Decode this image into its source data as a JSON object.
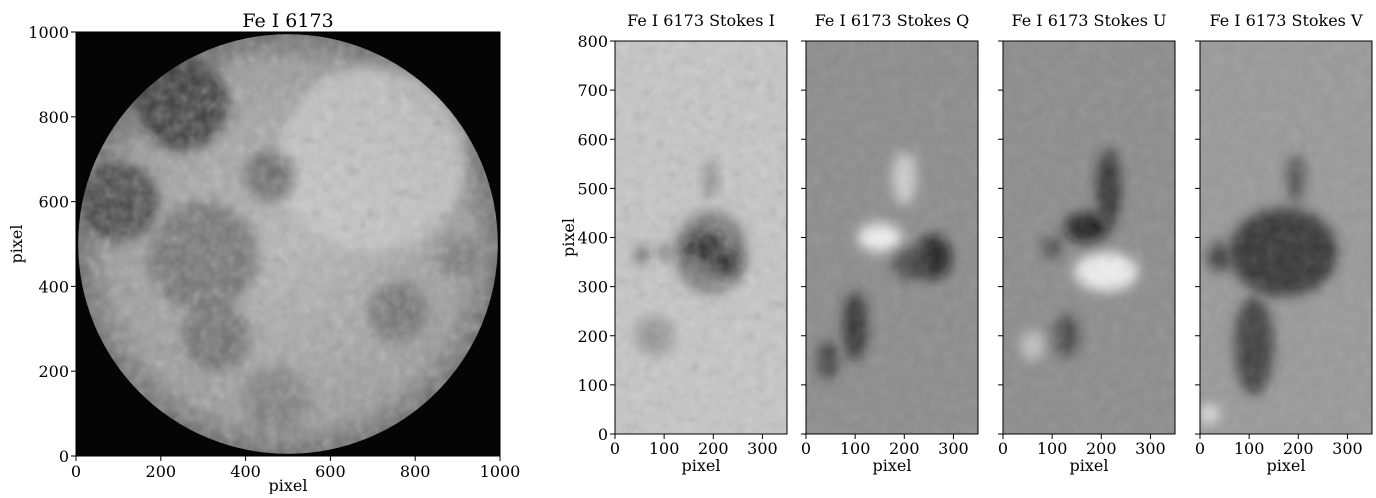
{
  "chart_data": [
    {
      "type": "image",
      "title": "Fe I 6173",
      "xlabel": "pixel",
      "ylabel": "pixel",
      "xlim": [
        0,
        1000
      ],
      "ylim": [
        0,
        1000
      ],
      "xticks": [
        0,
        200,
        400,
        600,
        800,
        1000
      ],
      "yticks": [
        0,
        200,
        400,
        600,
        800,
        1000
      ],
      "colormap": "gray",
      "content": "full-disk solar image",
      "disk": {
        "center": [
          500,
          500
        ],
        "radius": 495
      },
      "dark_regions": [
        {
          "x": 250,
          "y": 830,
          "r": 110,
          "level": 0.16
        },
        {
          "x": 100,
          "y": 600,
          "r": 95,
          "level": 0.22
        },
        {
          "x": 455,
          "y": 660,
          "r": 60,
          "level": 0.38
        },
        {
          "x": 300,
          "y": 470,
          "r": 130,
          "level": 0.42
        },
        {
          "x": 330,
          "y": 280,
          "r": 80,
          "level": 0.4
        },
        {
          "x": 760,
          "y": 340,
          "r": 70,
          "level": 0.42
        },
        {
          "x": 900,
          "y": 470,
          "r": 45,
          "level": 0.45
        },
        {
          "x": 470,
          "y": 130,
          "r": 80,
          "level": 0.48
        }
      ],
      "bright_regions": [
        {
          "x": 700,
          "y": 700,
          "r": 220,
          "level": 0.82
        }
      ]
    },
    {
      "type": "image",
      "title": "Fe I 6173 Stokes I",
      "xlabel": "pixel",
      "ylabel": "pixel",
      "xlim": [
        0,
        350
      ],
      "ylim": [
        0,
        800
      ],
      "xticks": [
        0,
        100,
        200,
        300
      ],
      "yticks": [
        0,
        100,
        200,
        300,
        400,
        500,
        600,
        700,
        800
      ],
      "colormap": "gray",
      "background": 0.78,
      "features": [
        {
          "x": 195,
          "y": 370,
          "rx": 75,
          "ry": 85,
          "level": 0.4
        },
        {
          "x": 180,
          "y": 380,
          "rx": 40,
          "ry": 30,
          "level": 0.1
        },
        {
          "x": 225,
          "y": 350,
          "rx": 30,
          "ry": 25,
          "level": 0.12
        },
        {
          "x": 55,
          "y": 365,
          "rx": 14,
          "ry": 18,
          "level": 0.25
        },
        {
          "x": 100,
          "y": 370,
          "rx": 12,
          "ry": 16,
          "level": 0.28
        },
        {
          "x": 195,
          "y": 520,
          "rx": 15,
          "ry": 40,
          "level": 0.5
        },
        {
          "x": 80,
          "y": 200,
          "rx": 40,
          "ry": 40,
          "level": 0.55
        }
      ]
    },
    {
      "type": "image",
      "title": "Fe I 6173 Stokes Q",
      "xlabel": "pixel",
      "xlim": [
        0,
        350
      ],
      "ylim": [
        0,
        800
      ],
      "xticks": [
        0,
        100,
        200,
        300
      ],
      "colormap": "gray",
      "background": 0.55,
      "features": [
        {
          "x": 150,
          "y": 400,
          "rx": 45,
          "ry": 30,
          "level": 1.0
        },
        {
          "x": 260,
          "y": 360,
          "rx": 35,
          "ry": 45,
          "level": 0.05
        },
        {
          "x": 215,
          "y": 345,
          "rx": 40,
          "ry": 30,
          "level": 0.25
        },
        {
          "x": 200,
          "y": 520,
          "rx": 25,
          "ry": 55,
          "level": 0.85
        },
        {
          "x": 100,
          "y": 220,
          "rx": 25,
          "ry": 70,
          "level": 0.15
        },
        {
          "x": 45,
          "y": 150,
          "rx": 20,
          "ry": 40,
          "level": 0.2
        }
      ]
    },
    {
      "type": "image",
      "title": "Fe I 6173 Stokes U",
      "xlabel": "pixel",
      "xlim": [
        0,
        350
      ],
      "ylim": [
        0,
        800
      ],
      "xticks": [
        0,
        100,
        200,
        300
      ],
      "colormap": "gray",
      "background": 0.55,
      "features": [
        {
          "x": 210,
          "y": 330,
          "rx": 65,
          "ry": 40,
          "level": 1.0
        },
        {
          "x": 170,
          "y": 420,
          "rx": 45,
          "ry": 30,
          "level": 0.05
        },
        {
          "x": 215,
          "y": 500,
          "rx": 25,
          "ry": 80,
          "level": 0.15
        },
        {
          "x": 100,
          "y": 380,
          "rx": 18,
          "ry": 20,
          "level": 0.2
        },
        {
          "x": 60,
          "y": 180,
          "rx": 25,
          "ry": 30,
          "level": 0.8
        },
        {
          "x": 130,
          "y": 200,
          "rx": 25,
          "ry": 45,
          "level": 0.25
        }
      ]
    },
    {
      "type": "image",
      "title": "Fe I 6173 Stokes V",
      "xlabel": "pixel",
      "xlim": [
        0,
        350
      ],
      "ylim": [
        0,
        800
      ],
      "xticks": [
        0,
        100,
        200,
        300
      ],
      "colormap": "gray",
      "background": 0.6,
      "features": [
        {
          "x": 170,
          "y": 370,
          "rx": 110,
          "ry": 90,
          "level": 0.15
        },
        {
          "x": 40,
          "y": 360,
          "rx": 25,
          "ry": 30,
          "level": 0.2
        },
        {
          "x": 110,
          "y": 180,
          "rx": 40,
          "ry": 100,
          "level": 0.2
        },
        {
          "x": 195,
          "y": 520,
          "rx": 20,
          "ry": 50,
          "level": 0.3
        },
        {
          "x": 20,
          "y": 40,
          "rx": 20,
          "ry": 20,
          "level": 0.95
        }
      ]
    }
  ]
}
